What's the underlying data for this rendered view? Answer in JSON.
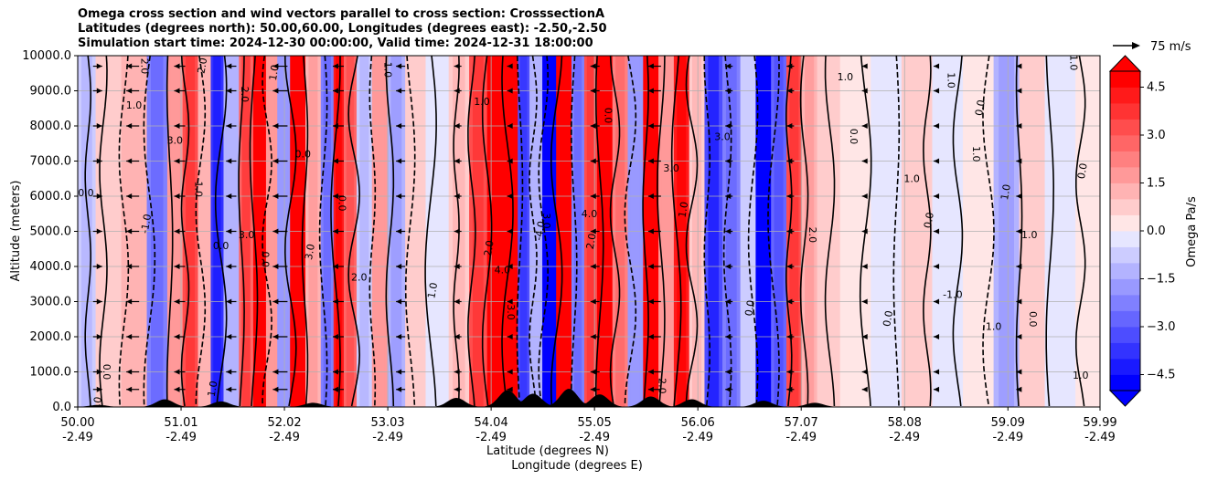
{
  "chart_data": {
    "type": "heatmap",
    "title_lines": [
      "Omega cross section and wind vectors parallel to cross section: CrosssectionA",
      "Latitudes (degrees north): 50.00,60.00, Longitudes (degrees east): -2.50,-2.50",
      "Simulation start time: 2024-12-30 00:00:00, Valid time: 2024-12-31 18:00:00"
    ],
    "xlabel_lat": "Latitude (degrees N)",
    "xlabel_lon": "Longitude (degrees E)",
    "ylabel": "Altitude (meters)",
    "x_range": [
      50.0,
      59.99
    ],
    "ylim": [
      0,
      10000
    ],
    "x_ticks": [
      {
        "lat": "50.00",
        "lon": "-2.49",
        "value": 50.0
      },
      {
        "lat": "51.01",
        "lon": "-2.49",
        "value": 51.01
      },
      {
        "lat": "52.02",
        "lon": "-2.49",
        "value": 52.02
      },
      {
        "lat": "53.03",
        "lon": "-2.49",
        "value": 53.03
      },
      {
        "lat": "54.04",
        "lon": "-2.49",
        "value": 54.04
      },
      {
        "lat": "55.05",
        "lon": "-2.49",
        "value": 55.05
      },
      {
        "lat": "56.06",
        "lon": "-2.49",
        "value": 56.06
      },
      {
        "lat": "57.07",
        "lon": "-2.49",
        "value": 57.07
      },
      {
        "lat": "58.08",
        "lon": "-2.49",
        "value": 58.08
      },
      {
        "lat": "59.09",
        "lon": "-2.49",
        "value": 59.09
      },
      {
        "lat": "59.99",
        "lon": "-2.49",
        "value": 59.99
      }
    ],
    "y_ticks": [
      {
        "label": "0.0",
        "value": 0
      },
      {
        "label": "1000.0",
        "value": 1000
      },
      {
        "label": "2000.0",
        "value": 2000
      },
      {
        "label": "3000.0",
        "value": 3000
      },
      {
        "label": "4000.0",
        "value": 4000
      },
      {
        "label": "5000.0",
        "value": 5000
      },
      {
        "label": "6000.0",
        "value": 6000
      },
      {
        "label": "7000.0",
        "value": 7000
      },
      {
        "label": "8000.0",
        "value": 8000
      },
      {
        "label": "9000.0",
        "value": 9000
      },
      {
        "label": "10000.0",
        "value": 10000
      }
    ],
    "grid": true,
    "colorbar": {
      "label": "Omega Pa/s",
      "range": [
        -5.0,
        5.0
      ],
      "step": 0.5,
      "extend": "both",
      "negative_color": "#0000ff",
      "positive_color": "#ff0000",
      "tick_labels": [
        {
          "label": "4.5",
          "value": 4.5
        },
        {
          "label": "3.0",
          "value": 3.0
        },
        {
          "label": "1.5",
          "value": 1.5
        },
        {
          "label": "0.0",
          "value": 0.0
        },
        {
          "label": "−1.5",
          "value": -1.5
        },
        {
          "label": "−3.0",
          "value": -3.0
        },
        {
          "label": "−4.5",
          "value": -4.5
        }
      ]
    },
    "quiver_key": {
      "label": "75 m/s",
      "value": 75
    },
    "omega_columns": [
      {
        "lat": 50.05,
        "v": -0.8
      },
      {
        "lat": 50.3,
        "v": 0.6
      },
      {
        "lat": 50.55,
        "v": 1.0
      },
      {
        "lat": 50.8,
        "v": -2.2
      },
      {
        "lat": 50.95,
        "v": 1.5
      },
      {
        "lat": 51.1,
        "v": 3.0
      },
      {
        "lat": 51.25,
        "v": 1.0
      },
      {
        "lat": 51.35,
        "v": -3.5
      },
      {
        "lat": 51.5,
        "v": -1.0
      },
      {
        "lat": 51.65,
        "v": 2.8
      },
      {
        "lat": 51.78,
        "v": 5.0
      },
      {
        "lat": 51.9,
        "v": 1.5
      },
      {
        "lat": 52.0,
        "v": -1.5
      },
      {
        "lat": 52.15,
        "v": 5.0
      },
      {
        "lat": 52.3,
        "v": 1.2
      },
      {
        "lat": 52.45,
        "v": -2.0
      },
      {
        "lat": 52.55,
        "v": 4.0
      },
      {
        "lat": 52.65,
        "v": 2.5
      },
      {
        "lat": 52.8,
        "v": -0.8
      },
      {
        "lat": 52.95,
        "v": 1.5
      },
      {
        "lat": 53.1,
        "v": -1.2
      },
      {
        "lat": 53.3,
        "v": 0.5
      },
      {
        "lat": 53.5,
        "v": -0.4
      },
      {
        "lat": 53.75,
        "v": 0.8
      },
      {
        "lat": 53.9,
        "v": 3.0
      },
      {
        "lat": 54.1,
        "v": 5.0
      },
      {
        "lat": 54.25,
        "v": 4.5
      },
      {
        "lat": 54.35,
        "v": -3.0
      },
      {
        "lat": 54.48,
        "v": -1.0
      },
      {
        "lat": 54.6,
        "v": -5.0
      },
      {
        "lat": 54.75,
        "v": 5.0
      },
      {
        "lat": 54.9,
        "v": -2.2
      },
      {
        "lat": 55.0,
        "v": 3.0
      },
      {
        "lat": 55.15,
        "v": 5.0
      },
      {
        "lat": 55.3,
        "v": 2.0
      },
      {
        "lat": 55.45,
        "v": -1.5
      },
      {
        "lat": 55.6,
        "v": 4.5
      },
      {
        "lat": 55.75,
        "v": 1.5
      },
      {
        "lat": 55.9,
        "v": 4.0
      },
      {
        "lat": 56.05,
        "v": 0.8
      },
      {
        "lat": 56.2,
        "v": -3.2
      },
      {
        "lat": 56.4,
        "v": -2.0
      },
      {
        "lat": 56.55,
        "v": -0.6
      },
      {
        "lat": 56.7,
        "v": -5.0
      },
      {
        "lat": 56.85,
        "v": -2.5
      },
      {
        "lat": 57.0,
        "v": 3.0
      },
      {
        "lat": 57.15,
        "v": 1.2
      },
      {
        "lat": 57.3,
        "v": 0.6
      },
      {
        "lat": 57.6,
        "v": 0.4
      },
      {
        "lat": 57.9,
        "v": -0.3
      },
      {
        "lat": 58.2,
        "v": 0.6
      },
      {
        "lat": 58.5,
        "v": -0.4
      },
      {
        "lat": 58.8,
        "v": 0.3
      },
      {
        "lat": 59.1,
        "v": -1.2
      },
      {
        "lat": 59.3,
        "v": 0.5
      },
      {
        "lat": 59.6,
        "v": -0.3
      },
      {
        "lat": 59.9,
        "v": 0.4
      }
    ],
    "contour_lines": [
      {
        "lat": 50.1,
        "style": "solid"
      },
      {
        "lat": 50.25,
        "style": "solid"
      },
      {
        "lat": 50.45,
        "style": "dashed"
      },
      {
        "lat": 50.7,
        "style": "dashed"
      },
      {
        "lat": 50.9,
        "style": "solid"
      },
      {
        "lat": 51.05,
        "style": "solid"
      },
      {
        "lat": 51.2,
        "style": "dashed"
      },
      {
        "lat": 51.4,
        "style": "solid"
      },
      {
        "lat": 51.6,
        "style": "solid"
      },
      {
        "lat": 51.72,
        "style": "solid"
      },
      {
        "lat": 51.85,
        "style": "dashed"
      },
      {
        "lat": 52.08,
        "style": "solid"
      },
      {
        "lat": 52.22,
        "style": "solid"
      },
      {
        "lat": 52.4,
        "style": "dashed"
      },
      {
        "lat": 52.52,
        "style": "solid"
      },
      {
        "lat": 52.7,
        "style": "solid"
      },
      {
        "lat": 52.88,
        "style": "dashed"
      },
      {
        "lat": 53.05,
        "style": "solid"
      },
      {
        "lat": 53.25,
        "style": "dashed"
      },
      {
        "lat": 53.45,
        "style": "solid"
      },
      {
        "lat": 53.7,
        "style": "solid"
      },
      {
        "lat": 53.85,
        "style": "solid"
      },
      {
        "lat": 54.0,
        "style": "solid"
      },
      {
        "lat": 54.2,
        "style": "solid"
      },
      {
        "lat": 54.32,
        "style": "dashed"
      },
      {
        "lat": 54.45,
        "style": "dashed"
      },
      {
        "lat": 54.55,
        "style": "dashed"
      },
      {
        "lat": 54.68,
        "style": "solid"
      },
      {
        "lat": 54.85,
        "style": "dashed"
      },
      {
        "lat": 55.1,
        "style": "solid"
      },
      {
        "lat": 55.25,
        "style": "solid"
      },
      {
        "lat": 55.4,
        "style": "dashed"
      },
      {
        "lat": 55.55,
        "style": "solid"
      },
      {
        "lat": 55.7,
        "style": "solid"
      },
      {
        "lat": 55.85,
        "style": "solid"
      },
      {
        "lat": 56.0,
        "style": "solid"
      },
      {
        "lat": 56.15,
        "style": "dashed"
      },
      {
        "lat": 56.35,
        "style": "dashed"
      },
      {
        "lat": 56.6,
        "style": "dashed"
      },
      {
        "lat": 56.8,
        "style": "dashed"
      },
      {
        "lat": 56.95,
        "style": "solid"
      },
      {
        "lat": 57.1,
        "style": "solid"
      },
      {
        "lat": 57.35,
        "style": "solid"
      },
      {
        "lat": 57.7,
        "style": "solid"
      },
      {
        "lat": 58.0,
        "style": "dashed"
      },
      {
        "lat": 58.3,
        "style": "solid"
      },
      {
        "lat": 58.6,
        "style": "solid"
      },
      {
        "lat": 58.9,
        "style": "dashed"
      },
      {
        "lat": 59.2,
        "style": "solid"
      },
      {
        "lat": 59.5,
        "style": "solid"
      },
      {
        "lat": 59.8,
        "style": "solid"
      }
    ],
    "contour_labels": [
      {
        "text": "0.0",
        "lat": 50.08,
        "alt": 6000
      },
      {
        "text": "0.0",
        "lat": 50.25,
        "alt": 1000
      },
      {
        "text": "0.0",
        "lat": 50.22,
        "alt": 50
      },
      {
        "text": "1.0",
        "lat": 50.55,
        "alt": 8500
      },
      {
        "text": "-1.0",
        "lat": 50.7,
        "alt": 5200
      },
      {
        "text": "2.0",
        "lat": 50.62,
        "alt": 9700
      },
      {
        "text": "3.0",
        "lat": 50.95,
        "alt": 7500
      },
      {
        "text": "1.0",
        "lat": 51.15,
        "alt": 6200
      },
      {
        "text": "2.0",
        "lat": 51.25,
        "alt": 9700
      },
      {
        "text": "0.0",
        "lat": 51.4,
        "alt": 4500
      },
      {
        "text": "1.0",
        "lat": 51.35,
        "alt": 500
      },
      {
        "text": "2.0",
        "lat": 51.6,
        "alt": 8900
      },
      {
        "text": "3.0",
        "lat": 51.65,
        "alt": 4800
      },
      {
        "text": "0.0",
        "lat": 51.8,
        "alt": 4200
      },
      {
        "text": "1.0",
        "lat": 51.95,
        "alt": 9500
      },
      {
        "text": "0.0",
        "lat": 52.2,
        "alt": 7100
      },
      {
        "text": "3.0",
        "lat": 52.3,
        "alt": 4400
      },
      {
        "text": "0.0",
        "lat": 52.55,
        "alt": 5800
      },
      {
        "text": "2.0",
        "lat": 52.75,
        "alt": 3600
      },
      {
        "text": "1.0",
        "lat": 53.0,
        "alt": 9600
      },
      {
        "text": "1.0",
        "lat": 53.5,
        "alt": 3300
      },
      {
        "text": "1.0",
        "lat": 53.95,
        "alt": 8600
      },
      {
        "text": "2.0",
        "lat": 54.05,
        "alt": 4500
      },
      {
        "text": "3.0",
        "lat": 54.2,
        "alt": 2700
      },
      {
        "text": "4.0",
        "lat": 54.15,
        "alt": 3800
      },
      {
        "text": "3.0",
        "lat": 54.55,
        "alt": 5300
      },
      {
        "text": "-4.0",
        "lat": 54.55,
        "alt": 5000
      },
      {
        "text": "4.0",
        "lat": 55.0,
        "alt": 5400
      },
      {
        "text": "2.0",
        "lat": 55.05,
        "alt": 4700
      },
      {
        "text": "0.0",
        "lat": 55.15,
        "alt": 8300
      },
      {
        "text": "3.0",
        "lat": 55.8,
        "alt": 6700
      },
      {
        "text": "2.0",
        "lat": 55.68,
        "alt": 600
      },
      {
        "text": "1.0",
        "lat": 55.95,
        "alt": 5600
      },
      {
        "text": "3.0",
        "lat": 56.3,
        "alt": 7600
      },
      {
        "text": "0.0",
        "lat": 56.6,
        "alt": 2800
      },
      {
        "text": "2.0",
        "lat": 57.15,
        "alt": 4900
      },
      {
        "text": "1.0",
        "lat": 57.5,
        "alt": 9300
      },
      {
        "text": "0.0",
        "lat": 57.55,
        "alt": 7700
      },
      {
        "text": "0.0",
        "lat": 57.95,
        "alt": 2500
      },
      {
        "text": "1.0",
        "lat": 58.15,
        "alt": 6400
      },
      {
        "text": "0.0",
        "lat": 58.35,
        "alt": 5300
      },
      {
        "text": "1.0",
        "lat": 58.5,
        "alt": 9300
      },
      {
        "text": "-1.0",
        "lat": 58.55,
        "alt": 3100
      },
      {
        "text": "1.0",
        "lat": 58.75,
        "alt": 7200
      },
      {
        "text": "0.0",
        "lat": 58.85,
        "alt": 8500
      },
      {
        "text": "1.0",
        "lat": 58.95,
        "alt": 2200
      },
      {
        "text": "1.0",
        "lat": 59.1,
        "alt": 6100
      },
      {
        "text": "0.0",
        "lat": 59.3,
        "alt": 2500
      },
      {
        "text": "1.0",
        "lat": 59.3,
        "alt": 4800
      },
      {
        "text": "1.0",
        "lat": 59.7,
        "alt": 9800
      },
      {
        "text": "0.0",
        "lat": 59.85,
        "alt": 6700
      },
      {
        "text": "1.0",
        "lat": 59.8,
        "alt": 800
      }
    ],
    "terrain_peaks": [
      {
        "lat": 50.2,
        "h": 60
      },
      {
        "lat": 50.85,
        "h": 220
      },
      {
        "lat": 51.4,
        "h": 160
      },
      {
        "lat": 52.3,
        "h": 120
      },
      {
        "lat": 53.7,
        "h": 260
      },
      {
        "lat": 54.2,
        "h": 480
      },
      {
        "lat": 54.45,
        "h": 380
      },
      {
        "lat": 54.8,
        "h": 520
      },
      {
        "lat": 55.1,
        "h": 360
      },
      {
        "lat": 55.6,
        "h": 300
      },
      {
        "lat": 56.0,
        "h": 220
      },
      {
        "lat": 56.7,
        "h": 180
      },
      {
        "lat": 57.2,
        "h": 120
      }
    ],
    "wind_rows_m": [
      500,
      1000,
      2000,
      3000,
      4000,
      5000,
      6000,
      7000,
      8000,
      9000,
      9700
    ],
    "wind_columns": [
      {
        "lat": 50.15,
        "u": 25
      },
      {
        "lat": 50.6,
        "u": -35
      },
      {
        "lat": 51.05,
        "u": -30
      },
      {
        "lat": 51.55,
        "u": -28
      },
      {
        "lat": 52.05,
        "u": -40
      },
      {
        "lat": 52.6,
        "u": -30
      },
      {
        "lat": 53.2,
        "u": -25
      },
      {
        "lat": 53.75,
        "u": -20
      },
      {
        "lat": 54.25,
        "u": -15
      },
      {
        "lat": 55.1,
        "u": -25
      },
      {
        "lat": 55.7,
        "u": -35
      },
      {
        "lat": 56.4,
        "u": -20
      },
      {
        "lat": 57.0,
        "u": -20
      },
      {
        "lat": 57.7,
        "u": -10
      },
      {
        "lat": 58.4,
        "u": -10
      },
      {
        "lat": 59.2,
        "u": -8
      }
    ]
  }
}
